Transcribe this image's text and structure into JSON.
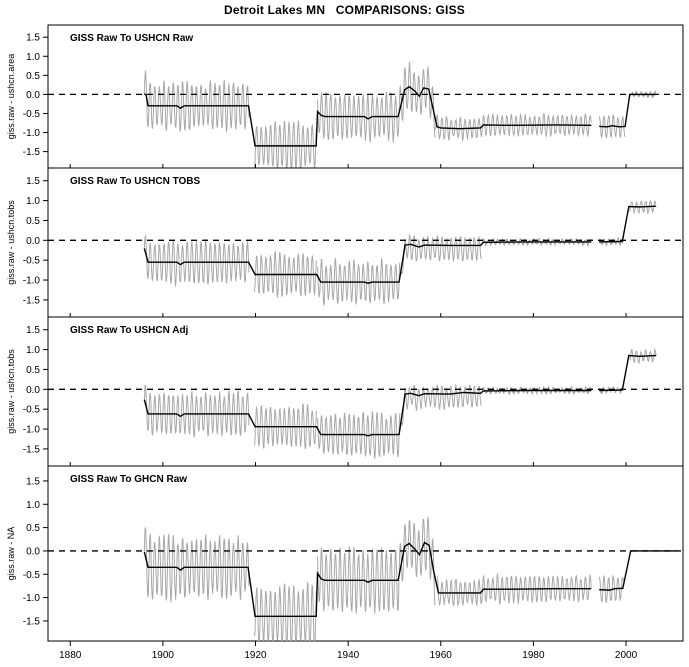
{
  "window": {
    "background": "#ffffff"
  },
  "chart_data": {
    "type": "line",
    "title": "Detroit Lakes MN   COMPARISONS: GISS",
    "xlabel": "",
    "x_ticks": [
      1880,
      1900,
      1920,
      1940,
      1960,
      1980,
      2000
    ],
    "xlim": [
      1875.2,
      2012.3
    ],
    "ylim": [
      -1.93,
      1.82
    ],
    "y_ticks": [
      1.5,
      1.0,
      0.5,
      0.0,
      -0.5,
      -1.0,
      -1.5
    ],
    "grid": false,
    "zero_reference_line": {
      "value": 0.0,
      "style": "dashed",
      "color": "#000000"
    },
    "colors": {
      "annual_line": "#000000",
      "monthly_line": "#a8a8a8",
      "axis": "#000000",
      "background": "#ffffff"
    },
    "legend": null,
    "panels": [
      {
        "label": "GISS Raw To USHCN Raw",
        "ylabel": "giss.raw - ushcn.area",
        "annual_segments": [
          [
            [
              1896,
              0.02
            ],
            [
              1896.4,
              -0.02
            ],
            [
              1896.8,
              -0.3
            ],
            [
              1903,
              -0.3
            ],
            [
              1903.8,
              -0.36
            ],
            [
              1904.6,
              -0.3
            ],
            [
              1918.5,
              -0.3
            ],
            [
              1919.9,
              -1.35
            ],
            [
              1933.1,
              -1.35
            ],
            [
              1933.4,
              -0.45
            ],
            [
              1934.2,
              -0.55
            ],
            [
              1935,
              -0.58
            ],
            [
              1943.5,
              -0.58
            ],
            [
              1944.3,
              -0.64
            ],
            [
              1945.2,
              -0.58
            ],
            [
              1950.8,
              -0.58
            ],
            [
              1952.2,
              0.12
            ],
            [
              1953.2,
              0.2
            ],
            [
              1954.3,
              0.1
            ],
            [
              1955.4,
              -0.05
            ],
            [
              1956.3,
              0.17
            ],
            [
              1957.4,
              0.14
            ],
            [
              1958.2,
              -0.3
            ],
            [
              1959.2,
              -0.85
            ],
            [
              1960,
              -0.88
            ],
            [
              1964,
              -0.9
            ],
            [
              1968.6,
              -0.88
            ],
            [
              1969.2,
              -0.8
            ],
            [
              1975,
              -0.81
            ],
            [
              1985,
              -0.8
            ],
            [
              1992.5,
              -0.81
            ]
          ],
          [
            [
              1994.2,
              -0.84
            ],
            [
              1996,
              -0.85
            ],
            [
              1997,
              -0.82
            ],
            [
              1998.5,
              -0.85
            ],
            [
              1999.8,
              -0.84
            ],
            [
              2000.8,
              0.0
            ],
            [
              2006.5,
              0.0
            ]
          ]
        ],
        "monthly_segments": [
          {
            "from": 1896,
            "to": 1918.6,
            "amplitude": 0.66,
            "offset": 0
          },
          {
            "from": 1919.8,
            "to": 1933.2,
            "amplitude": 0.66,
            "offset": 0
          },
          {
            "from": 1933.4,
            "to": 1951.0,
            "amplitude": 0.66,
            "offset": 0
          },
          {
            "from": 1951.0,
            "to": 1958.8,
            "amplitude": 0.62,
            "offset": 0
          },
          {
            "from": 1958.8,
            "to": 1992.5,
            "amplitude": 0.3,
            "offset": 0
          },
          {
            "from": 1994.2,
            "to": 1999.8,
            "amplitude": 0.3,
            "offset": 0
          },
          {
            "from": 2000.8,
            "to": 2006.5,
            "amplitude": 0.07,
            "offset": 0
          }
        ]
      },
      {
        "label": "GISS Raw To USHCN TOBS",
        "ylabel": "giss.raw - ushcn.tobs",
        "annual_segments": [
          [
            [
              1896,
              -0.2
            ],
            [
              1896.8,
              -0.55
            ],
            [
              1903,
              -0.55
            ],
            [
              1903.8,
              -0.61
            ],
            [
              1904.6,
              -0.55
            ],
            [
              1918.5,
              -0.55
            ],
            [
              1919.9,
              -0.86
            ],
            [
              1933.2,
              -0.86
            ],
            [
              1934.1,
              -1.05
            ],
            [
              1943.5,
              -1.05
            ],
            [
              1944.3,
              -1.08
            ],
            [
              1945.2,
              -1.05
            ],
            [
              1951.0,
              -1.05
            ],
            [
              1952.3,
              -0.12
            ],
            [
              1953.5,
              -0.1
            ],
            [
              1955.3,
              -0.17
            ],
            [
              1956.5,
              -0.12
            ],
            [
              1962,
              -0.13
            ],
            [
              1968.6,
              -0.13
            ],
            [
              1969.2,
              -0.05
            ],
            [
              1980,
              -0.04
            ],
            [
              1992.5,
              -0.04
            ]
          ],
          [
            [
              1994.2,
              -0.04
            ],
            [
              1999.2,
              -0.03
            ],
            [
              2000.6,
              0.85
            ],
            [
              2003,
              0.84
            ],
            [
              2006.5,
              0.86
            ]
          ]
        ],
        "monthly_segments": [
          {
            "from": 1896,
            "to": 1918.6,
            "amplitude": 0.58,
            "offset": 0
          },
          {
            "from": 1919.8,
            "to": 1933.2,
            "amplitude": 0.58,
            "offset": 0
          },
          {
            "from": 1933.4,
            "to": 1951.2,
            "amplitude": 0.58,
            "offset": 0
          },
          {
            "from": 1951.5,
            "to": 1968.8,
            "amplitude": 0.3,
            "offset": -0.08
          },
          {
            "from": 1969.0,
            "to": 1992.5,
            "amplitude": 0.06,
            "offset": 0
          },
          {
            "from": 1994.2,
            "to": 1999.3,
            "amplitude": 0.06,
            "offset": 0
          },
          {
            "from": 2000.8,
            "to": 2006.5,
            "amplitude": 0.15,
            "offset": 0
          }
        ]
      },
      {
        "label": "GISS Raw To USHCN Adj",
        "ylabel": "giss.raw - ushcn.tobs",
        "annual_segments": [
          [
            [
              1896,
              -0.26
            ],
            [
              1896.8,
              -0.62
            ],
            [
              1903,
              -0.62
            ],
            [
              1903.8,
              -0.68
            ],
            [
              1904.6,
              -0.62
            ],
            [
              1918.5,
              -0.62
            ],
            [
              1919.9,
              -0.94
            ],
            [
              1933.2,
              -0.94
            ],
            [
              1934.1,
              -1.14
            ],
            [
              1943.5,
              -1.14
            ],
            [
              1944.3,
              -1.17
            ],
            [
              1945.2,
              -1.14
            ],
            [
              1951.0,
              -1.14
            ],
            [
              1952.3,
              -0.12
            ],
            [
              1953.5,
              -0.1
            ],
            [
              1955.3,
              -0.16
            ],
            [
              1956.5,
              -0.11
            ],
            [
              1962,
              -0.12
            ],
            [
              1965,
              -0.08
            ],
            [
              1968.6,
              -0.1
            ],
            [
              1969.2,
              -0.04
            ],
            [
              1980,
              -0.03
            ],
            [
              1992.5,
              -0.03
            ]
          ],
          [
            [
              1994.2,
              -0.03
            ],
            [
              1999.2,
              -0.02
            ],
            [
              2000.6,
              0.85
            ],
            [
              2003,
              0.83
            ],
            [
              2006.5,
              0.85
            ]
          ]
        ],
        "monthly_segments": [
          {
            "from": 1896,
            "to": 1918.6,
            "amplitude": 0.58,
            "offset": 0
          },
          {
            "from": 1919.8,
            "to": 1933.2,
            "amplitude": 0.58,
            "offset": 0
          },
          {
            "from": 1933.4,
            "to": 1951.2,
            "amplitude": 0.58,
            "offset": 0
          },
          {
            "from": 1951.5,
            "to": 1968.8,
            "amplitude": 0.3,
            "offset": -0.08
          },
          {
            "from": 1969.0,
            "to": 1992.5,
            "amplitude": 0.06,
            "offset": 0
          },
          {
            "from": 1994.2,
            "to": 1999.3,
            "amplitude": 0.06,
            "offset": 0
          },
          {
            "from": 2000.8,
            "to": 2006.5,
            "amplitude": 0.15,
            "offset": 0
          }
        ]
      },
      {
        "label": "GISS Raw To GHCN Raw",
        "ylabel": "giss.raw - NA",
        "annual_segments": [
          [
            [
              1896,
              -0.02
            ],
            [
              1896.8,
              -0.35
            ],
            [
              1903,
              -0.35
            ],
            [
              1903.8,
              -0.41
            ],
            [
              1904.6,
              -0.35
            ],
            [
              1918.4,
              -0.35
            ],
            [
              1919.9,
              -1.4
            ],
            [
              1933.1,
              -1.4
            ],
            [
              1933.4,
              -0.48
            ],
            [
              1934.2,
              -0.6
            ],
            [
              1935,
              -0.63
            ],
            [
              1943.5,
              -0.63
            ],
            [
              1944.3,
              -0.67
            ],
            [
              1945.2,
              -0.63
            ],
            [
              1950.8,
              -0.63
            ],
            [
              1952.2,
              0.1
            ],
            [
              1953.2,
              0.16
            ],
            [
              1954.3,
              0.05
            ],
            [
              1955.4,
              -0.08
            ],
            [
              1956.5,
              0.18
            ],
            [
              1957.5,
              0.12
            ],
            [
              1958.4,
              -0.4
            ],
            [
              1959.5,
              -0.9
            ],
            [
              1968.6,
              -0.9
            ],
            [
              1969.2,
              -0.82
            ],
            [
              1975,
              -0.82
            ],
            [
              1985,
              -0.81
            ],
            [
              1992.5,
              -0.81
            ]
          ],
          [
            [
              1994.2,
              -0.83
            ],
            [
              1996.5,
              -0.84
            ],
            [
              1997.5,
              -0.81
            ],
            [
              1999.3,
              -0.8
            ],
            [
              2001.0,
              0.0
            ],
            [
              2010.8,
              0.0
            ]
          ]
        ],
        "monthly_segments": [
          {
            "from": 1896,
            "to": 1918.6,
            "amplitude": 0.72,
            "offset": 0
          },
          {
            "from": 1919.8,
            "to": 1933.2,
            "amplitude": 0.72,
            "offset": 0
          },
          {
            "from": 1933.4,
            "to": 1951.0,
            "amplitude": 0.72,
            "offset": 0
          },
          {
            "from": 1951.0,
            "to": 1958.8,
            "amplitude": 0.62,
            "offset": 0
          },
          {
            "from": 1959.3,
            "to": 1992.5,
            "amplitude": 0.3,
            "offset": 0
          },
          {
            "from": 1994.2,
            "to": 1999.5,
            "amplitude": 0.3,
            "offset": 0
          }
        ]
      }
    ]
  }
}
